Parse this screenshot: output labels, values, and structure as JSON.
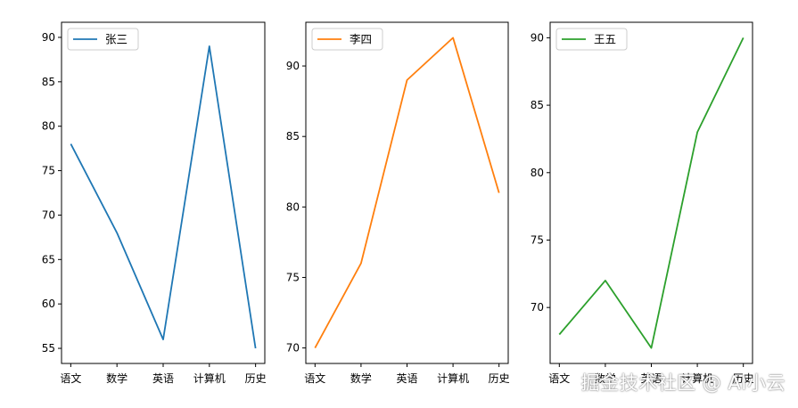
{
  "chart_data": [
    {
      "type": "line",
      "categories": [
        "语文",
        "数学",
        "英语",
        "计算机",
        "历史"
      ],
      "series": [
        {
          "name": "张三",
          "values": [
            78,
            68,
            56,
            89,
            55
          ],
          "color": "#1f77b4"
        }
      ],
      "yticks": [
        55,
        60,
        65,
        70,
        75,
        80,
        85,
        90
      ],
      "ylim": [
        53.3,
        91.7
      ],
      "legend": "upper-left",
      "grid": false
    },
    {
      "type": "line",
      "categories": [
        "语文",
        "数学",
        "英语",
        "计算机",
        "历史"
      ],
      "series": [
        {
          "name": "李四",
          "values": [
            70,
            76,
            89,
            92,
            81
          ],
          "color": "#ff7f0e"
        }
      ],
      "yticks": [
        70,
        75,
        80,
        85,
        90
      ],
      "ylim": [
        68.9,
        93.1
      ],
      "legend": "upper-left",
      "grid": false
    },
    {
      "type": "line",
      "categories": [
        "语文",
        "数学",
        "英语",
        "计算机",
        "历史"
      ],
      "series": [
        {
          "name": "王五",
          "values": [
            68,
            72,
            67,
            83,
            90
          ],
          "color": "#2ca02c"
        }
      ],
      "yticks": [
        70,
        75,
        80,
        85,
        90
      ],
      "ylim": [
        65.85,
        91.15
      ],
      "legend": "upper-left",
      "grid": false
    }
  ],
  "watermark": "掘金技术社区 @ AI小云"
}
